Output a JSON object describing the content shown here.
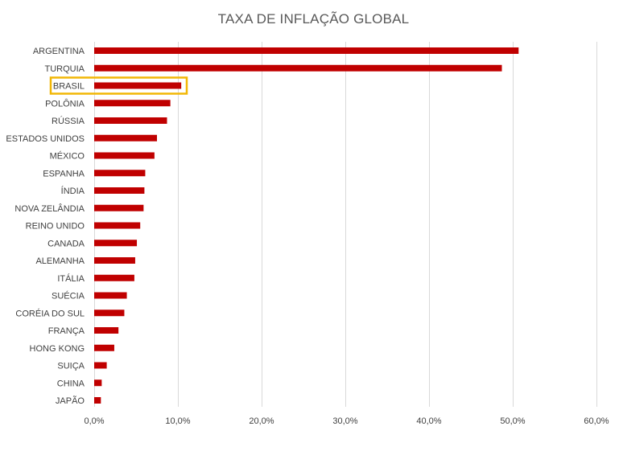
{
  "chart_data": {
    "type": "bar",
    "orientation": "horizontal",
    "title": "TAXA DE INFLAÇÃO GLOBAL",
    "xlabel": "",
    "ylabel": "",
    "categories": [
      "ARGENTINA",
      "TURQUIA",
      "BRASIL",
      "POLÔNIA",
      "RÚSSIA",
      "ESTADOS UNIDOS",
      "MÉXICO",
      "ESPANHA",
      "ÍNDIA",
      "NOVA ZELÂNDIA",
      "REINO UNIDO",
      "CANADA",
      "ALEMANHA",
      "ITÁLIA",
      "SUÉCIA",
      "CORÉIA DO SUL",
      "FRANÇA",
      "HONG KONG",
      "SUIÇA",
      "CHINA",
      "JAPÃO"
    ],
    "values": [
      50.7,
      48.7,
      10.4,
      9.1,
      8.7,
      7.5,
      7.2,
      6.1,
      6.0,
      5.9,
      5.5,
      5.1,
      4.9,
      4.8,
      3.9,
      3.6,
      2.9,
      2.4,
      1.5,
      0.9,
      0.8
    ],
    "xlim": [
      0,
      60
    ],
    "xticks": [
      "0,0%",
      "10,0%",
      "20,0%",
      "30,0%",
      "40,0%",
      "50,0%",
      "60,0%"
    ],
    "xtick_values": [
      0,
      10,
      20,
      30,
      40,
      50,
      60
    ],
    "grid": true,
    "legend": "none",
    "highlighted_category": "BRASIL",
    "colors": {
      "bar": "#C00000",
      "highlight_box": "#F2B705",
      "grid": "#D9D9D9"
    }
  }
}
